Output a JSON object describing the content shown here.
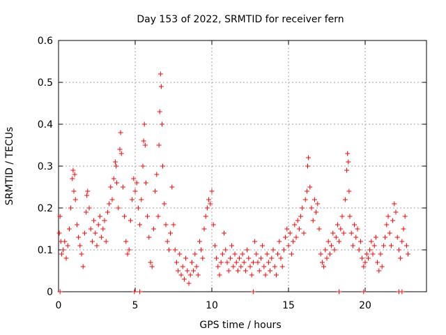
{
  "chart_data": {
    "type": "scatter",
    "title": "Day 153 of 2022, SRMTID for receiver fern",
    "xlabel": "GPS time / hours",
    "ylabel": "SRMTID / TECUs",
    "xlim": [
      0,
      24
    ],
    "ylim": [
      0,
      0.6
    ],
    "xticks": [
      0,
      5,
      10,
      15,
      20
    ],
    "yticks": [
      0,
      0.1,
      0.2,
      0.3,
      0.4,
      0.5,
      0.6
    ],
    "xtick_labels": [
      "0",
      "5",
      "10",
      "15",
      "20"
    ],
    "ytick_labels": [
      "0",
      "0.1",
      "0.2",
      "0.3",
      "0.4",
      "0.5",
      "0.6"
    ],
    "grid": true,
    "marker": "+",
    "series": [
      {
        "name": "SRMTID",
        "color": "#ff0000",
        "points": [
          [
            0.05,
            0.14
          ],
          [
            0.1,
            0.18
          ],
          [
            0.15,
            0.12
          ],
          [
            0.2,
            0.09
          ],
          [
            0.3,
            0.1
          ],
          [
            0.4,
            0.12
          ],
          [
            0.5,
            0.08
          ],
          [
            0.6,
            0.11
          ],
          [
            0.7,
            0.15
          ],
          [
            0.8,
            0.2
          ],
          [
            0.9,
            0.27
          ],
          [
            0.95,
            0.29
          ],
          [
            1.0,
            0.24
          ],
          [
            1.05,
            0.28
          ],
          [
            1.1,
            0.22
          ],
          [
            1.2,
            0.16
          ],
          [
            1.3,
            0.13
          ],
          [
            1.4,
            0.11
          ],
          [
            1.5,
            0.09
          ],
          [
            1.6,
            0.06
          ],
          [
            1.7,
            0.14
          ],
          [
            1.8,
            0.19
          ],
          [
            1.85,
            0.23
          ],
          [
            1.9,
            0.24
          ],
          [
            2.0,
            0.2
          ],
          [
            2.1,
            0.15
          ],
          [
            2.2,
            0.12
          ],
          [
            2.3,
            0.17
          ],
          [
            2.4,
            0.14
          ],
          [
            2.5,
            0.11
          ],
          [
            2.6,
            0.16
          ],
          [
            2.7,
            0.18
          ],
          [
            2.8,
            0.13
          ],
          [
            2.9,
            0.15
          ],
          [
            3.0,
            0.17
          ],
          [
            3.1,
            0.12
          ],
          [
            3.2,
            0.19
          ],
          [
            3.3,
            0.21
          ],
          [
            3.4,
            0.25
          ],
          [
            3.5,
            0.22
          ],
          [
            3.6,
            0.27
          ],
          [
            3.7,
            0.31
          ],
          [
            3.75,
            0.3
          ],
          [
            3.8,
            0.26
          ],
          [
            3.9,
            0.2
          ],
          [
            4.0,
            0.34
          ],
          [
            4.05,
            0.38
          ],
          [
            4.1,
            0.33
          ],
          [
            4.2,
            0.25
          ],
          [
            4.3,
            0.18
          ],
          [
            4.4,
            0.12
          ],
          [
            4.5,
            0.09
          ],
          [
            4.6,
            0.1
          ],
          [
            4.7,
            0.17
          ],
          [
            4.8,
            0.22
          ],
          [
            4.9,
            0.27
          ],
          [
            5.0,
            0.24
          ],
          [
            5.1,
            0.26
          ],
          [
            5.2,
            0.2
          ],
          [
            5.3,
            0.16
          ],
          [
            5.4,
            0.22
          ],
          [
            5.5,
            0.3
          ],
          [
            5.55,
            0.36
          ],
          [
            5.6,
            0.4
          ],
          [
            5.65,
            0.35
          ],
          [
            5.7,
            0.26
          ],
          [
            5.8,
            0.18
          ],
          [
            5.9,
            0.13
          ],
          [
            6.0,
            0.07
          ],
          [
            6.1,
            0.06
          ],
          [
            6.2,
            0.15
          ],
          [
            6.3,
            0.24
          ],
          [
            6.4,
            0.28
          ],
          [
            6.5,
            0.18
          ],
          [
            6.55,
            0.35
          ],
          [
            6.6,
            0.43
          ],
          [
            6.65,
            0.52
          ],
          [
            6.7,
            0.49
          ],
          [
            6.75,
            0.4
          ],
          [
            6.8,
            0.3
          ],
          [
            6.9,
            0.21
          ],
          [
            7.0,
            0.16
          ],
          [
            7.1,
            0.12
          ],
          [
            7.2,
            0.1
          ],
          [
            7.3,
            0.14
          ],
          [
            7.4,
            0.25
          ],
          [
            7.5,
            0.16
          ],
          [
            7.6,
            0.1
          ],
          [
            7.7,
            0.07
          ],
          [
            7.8,
            0.05
          ],
          [
            7.9,
            0.09
          ],
          [
            8.0,
            0.04
          ],
          [
            8.1,
            0.06
          ],
          [
            8.2,
            0.03
          ],
          [
            8.3,
            0.08
          ],
          [
            8.4,
            0.05
          ],
          [
            8.5,
            0.02
          ],
          [
            8.6,
            0.04
          ],
          [
            8.7,
            0.07
          ],
          [
            8.8,
            0.05
          ],
          [
            8.9,
            0.09
          ],
          [
            9.0,
            0.06
          ],
          [
            9.1,
            0.04
          ],
          [
            9.2,
            0.12
          ],
          [
            9.3,
            0.1
          ],
          [
            9.4,
            0.08
          ],
          [
            9.5,
            0.15
          ],
          [
            9.6,
            0.18
          ],
          [
            9.7,
            0.2
          ],
          [
            9.8,
            0.22
          ],
          [
            9.9,
            0.21
          ],
          [
            10.0,
            0.24
          ],
          [
            10.1,
            0.16
          ],
          [
            10.2,
            0.11
          ],
          [
            10.3,
            0.08
          ],
          [
            10.4,
            0.06
          ],
          [
            10.5,
            0.04
          ],
          [
            10.6,
            0.07
          ],
          [
            10.7,
            0.09
          ],
          [
            10.8,
            0.14
          ],
          [
            10.9,
            0.1
          ],
          [
            11.0,
            0.07
          ],
          [
            11.1,
            0.05
          ],
          [
            11.2,
            0.08
          ],
          [
            11.3,
            0.11
          ],
          [
            11.4,
            0.06
          ],
          [
            11.5,
            0.09
          ],
          [
            11.6,
            0.07
          ],
          [
            11.7,
            0.05
          ],
          [
            11.8,
            0.08
          ],
          [
            11.9,
            0.06
          ],
          [
            12.0,
            0.09
          ],
          [
            12.1,
            0.07
          ],
          [
            12.2,
            0.05
          ],
          [
            12.3,
            0.1
          ],
          [
            12.4,
            0.08
          ],
          [
            12.5,
            0.06
          ],
          [
            12.6,
            0.04
          ],
          [
            12.7,
            0.07
          ],
          [
            12.8,
            0.12
          ],
          [
            12.9,
            0.09
          ],
          [
            13.0,
            0.07
          ],
          [
            13.1,
            0.05
          ],
          [
            13.2,
            0.08
          ],
          [
            13.3,
            0.11
          ],
          [
            13.4,
            0.06
          ],
          [
            13.5,
            0.04
          ],
          [
            13.6,
            0.09
          ],
          [
            13.7,
            0.07
          ],
          [
            13.8,
            0.05
          ],
          [
            13.9,
            0.08
          ],
          [
            14.0,
            0.1
          ],
          [
            14.1,
            0.06
          ],
          [
            14.2,
            0.04
          ],
          [
            14.3,
            0.09
          ],
          [
            14.4,
            0.12
          ],
          [
            14.5,
            0.08
          ],
          [
            14.6,
            0.06
          ],
          [
            14.7,
            0.1
          ],
          [
            14.8,
            0.13
          ],
          [
            14.9,
            0.15
          ],
          [
            15.0,
            0.11
          ],
          [
            15.1,
            0.14
          ],
          [
            15.2,
            0.09
          ],
          [
            15.3,
            0.12
          ],
          [
            15.4,
            0.16
          ],
          [
            15.5,
            0.13
          ],
          [
            15.6,
            0.17
          ],
          [
            15.7,
            0.15
          ],
          [
            15.8,
            0.18
          ],
          [
            15.9,
            0.2
          ],
          [
            16.0,
            0.14
          ],
          [
            16.1,
            0.22
          ],
          [
            16.2,
            0.24
          ],
          [
            16.25,
            0.3
          ],
          [
            16.3,
            0.32
          ],
          [
            16.4,
            0.25
          ],
          [
            16.5,
            0.2
          ],
          [
            16.6,
            0.17
          ],
          [
            16.7,
            0.22
          ],
          [
            16.8,
            0.19
          ],
          [
            16.9,
            0.21
          ],
          [
            17.0,
            0.15
          ],
          [
            17.1,
            0.09
          ],
          [
            17.2,
            0.07
          ],
          [
            17.3,
            0.06
          ],
          [
            17.4,
            0.1
          ],
          [
            17.5,
            0.08
          ],
          [
            17.6,
            0.12
          ],
          [
            17.7,
            0.09
          ],
          [
            17.8,
            0.11
          ],
          [
            17.9,
            0.14
          ],
          [
            18.0,
            0.1
          ],
          [
            18.1,
            0.13
          ],
          [
            18.2,
            0.16
          ],
          [
            18.3,
            0.12
          ],
          [
            18.4,
            0.15
          ],
          [
            18.5,
            0.18
          ],
          [
            18.6,
            0.14
          ],
          [
            18.7,
            0.22
          ],
          [
            18.8,
            0.29
          ],
          [
            18.85,
            0.33
          ],
          [
            18.9,
            0.31
          ],
          [
            18.95,
            0.24
          ],
          [
            19.0,
            0.18
          ],
          [
            19.1,
            0.14
          ],
          [
            19.2,
            0.11
          ],
          [
            19.3,
            0.16
          ],
          [
            19.4,
            0.13
          ],
          [
            19.5,
            0.15
          ],
          [
            19.6,
            0.1
          ],
          [
            19.7,
            0.12
          ],
          [
            19.8,
            0.08
          ],
          [
            19.9,
            0.06
          ],
          [
            20.0,
            0.07
          ],
          [
            20.1,
            0.09
          ],
          [
            20.2,
            0.08
          ],
          [
            20.3,
            0.1
          ],
          [
            20.4,
            0.12
          ],
          [
            20.5,
            0.09
          ],
          [
            20.6,
            0.11
          ],
          [
            20.7,
            0.13
          ],
          [
            20.8,
            0.07
          ],
          [
            20.9,
            0.05
          ],
          [
            21.0,
            0.09
          ],
          [
            21.1,
            0.06
          ],
          [
            21.2,
            0.11
          ],
          [
            21.3,
            0.13
          ],
          [
            21.4,
            0.16
          ],
          [
            21.5,
            0.18
          ],
          [
            21.6,
            0.14
          ],
          [
            21.7,
            0.11
          ],
          [
            21.8,
            0.17
          ],
          [
            21.9,
            0.21
          ],
          [
            22.0,
            0.19
          ],
          [
            22.1,
            0.13
          ],
          [
            22.2,
            0.1
          ],
          [
            22.3,
            0.08
          ],
          [
            22.4,
            0.12
          ],
          [
            22.5,
            0.15
          ],
          [
            22.6,
            0.18
          ],
          [
            22.7,
            0.11
          ],
          [
            22.8,
            0.09
          ]
        ]
      }
    ],
    "baseline_markers": {
      "name": "zero-level points",
      "color": "#ff0000",
      "x": [
        0.1,
        4.95,
        5.3,
        12.7,
        18.3,
        19.9,
        22.2,
        22.4
      ]
    }
  }
}
